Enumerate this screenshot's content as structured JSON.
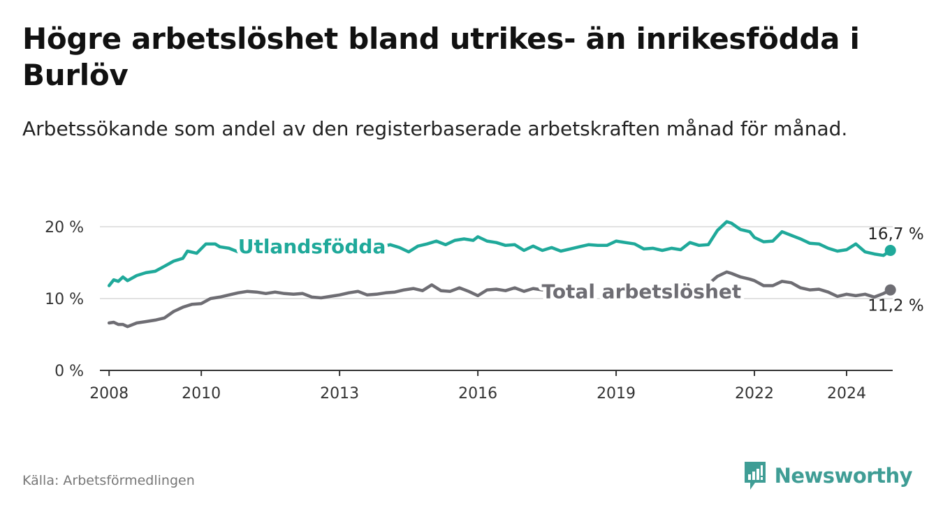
{
  "header": {
    "title": "Högre arbetslöshet bland utrikes- än inrikesfödda i Burlöv",
    "subtitle": "Arbetssökande som andel av den registerbaserade arbetskraften månad för månad."
  },
  "footer": {
    "source": "Källa: Arbetsförmedlingen",
    "brand": "Newsworthy",
    "brand_icon": "bar-chart-logo-icon",
    "brand_color": "#3f9d95"
  },
  "chart_data": {
    "type": "line",
    "title": "Högre arbetslöshet bland utrikes- än inrikesfödda i Burlöv",
    "xlabel": "",
    "ylabel": "",
    "xlim": [
      2007.8,
      2025.0
    ],
    "ylim": [
      0,
      20
    ],
    "x_ticks": [
      {
        "value": 2008,
        "label": "2008"
      },
      {
        "value": 2010,
        "label": "2010"
      },
      {
        "value": 2013,
        "label": "2013"
      },
      {
        "value": 2016,
        "label": "2016"
      },
      {
        "value": 2019,
        "label": "2019"
      },
      {
        "value": 2022,
        "label": "2022"
      },
      {
        "value": 2024,
        "label": "2024"
      }
    ],
    "y_ticks": [
      {
        "value": 0,
        "label": "0 %"
      },
      {
        "value": 10,
        "label": "10 %"
      },
      {
        "value": 20,
        "label": "20 %"
      }
    ],
    "grid": true,
    "series": [
      {
        "name": "Utlandsfödda",
        "color": "#1fa99a",
        "end_label": "16,7 %",
        "end_value": 16.7,
        "points": [
          [
            2008.0,
            11.8
          ],
          [
            2008.1,
            12.6
          ],
          [
            2008.2,
            12.4
          ],
          [
            2008.3,
            13.0
          ],
          [
            2008.4,
            12.5
          ],
          [
            2008.6,
            13.2
          ],
          [
            2008.8,
            13.6
          ],
          [
            2009.0,
            13.8
          ],
          [
            2009.2,
            14.5
          ],
          [
            2009.4,
            15.2
          ],
          [
            2009.6,
            15.6
          ],
          [
            2009.7,
            16.6
          ],
          [
            2009.9,
            16.3
          ],
          [
            2010.1,
            17.6
          ],
          [
            2010.3,
            17.6
          ],
          [
            2010.4,
            17.2
          ],
          [
            2010.6,
            17.0
          ],
          [
            2010.8,
            16.5
          ],
          [
            2011.0,
            17.5
          ],
          [
            2011.2,
            17.1
          ],
          [
            2011.4,
            17.6
          ],
          [
            2011.6,
            17.5
          ],
          [
            2011.8,
            16.5
          ],
          [
            2011.9,
            16.4
          ],
          [
            2012.1,
            17.5
          ],
          [
            2012.3,
            17.2
          ],
          [
            2012.5,
            17.4
          ],
          [
            2012.7,
            17.6
          ],
          [
            2012.9,
            17.4
          ],
          [
            2013.1,
            17.7
          ],
          [
            2013.3,
            17.3
          ],
          [
            2013.5,
            17.6
          ],
          [
            2013.7,
            17.5
          ],
          [
            2013.9,
            17.2
          ],
          [
            2014.1,
            17.5
          ],
          [
            2014.3,
            17.1
          ],
          [
            2014.5,
            16.5
          ],
          [
            2014.7,
            17.3
          ],
          [
            2014.9,
            17.6
          ],
          [
            2015.1,
            18.0
          ],
          [
            2015.3,
            17.5
          ],
          [
            2015.5,
            18.1
          ],
          [
            2015.7,
            18.3
          ],
          [
            2015.9,
            18.1
          ],
          [
            2016.0,
            18.6
          ],
          [
            2016.2,
            18.0
          ],
          [
            2016.4,
            17.8
          ],
          [
            2016.6,
            17.4
          ],
          [
            2016.8,
            17.5
          ],
          [
            2017.0,
            16.7
          ],
          [
            2017.2,
            17.3
          ],
          [
            2017.4,
            16.7
          ],
          [
            2017.6,
            17.1
          ],
          [
            2017.8,
            16.6
          ],
          [
            2018.0,
            16.9
          ],
          [
            2018.2,
            17.2
          ],
          [
            2018.4,
            17.5
          ],
          [
            2018.6,
            17.4
          ],
          [
            2018.8,
            17.4
          ],
          [
            2019.0,
            18.0
          ],
          [
            2019.2,
            17.8
          ],
          [
            2019.4,
            17.6
          ],
          [
            2019.6,
            16.9
          ],
          [
            2019.8,
            17.0
          ],
          [
            2020.0,
            16.7
          ],
          [
            2020.2,
            17.0
          ],
          [
            2020.4,
            16.8
          ],
          [
            2020.6,
            17.8
          ],
          [
            2020.8,
            17.4
          ],
          [
            2021.0,
            17.5
          ],
          [
            2021.2,
            19.5
          ],
          [
            2021.4,
            20.7
          ],
          [
            2021.5,
            20.5
          ],
          [
            2021.7,
            19.6
          ],
          [
            2021.9,
            19.3
          ],
          [
            2022.0,
            18.5
          ],
          [
            2022.2,
            17.9
          ],
          [
            2022.4,
            18.0
          ],
          [
            2022.6,
            19.3
          ],
          [
            2022.8,
            18.8
          ],
          [
            2023.0,
            18.3
          ],
          [
            2023.2,
            17.7
          ],
          [
            2023.4,
            17.6
          ],
          [
            2023.6,
            17.0
          ],
          [
            2023.8,
            16.6
          ],
          [
            2024.0,
            16.8
          ],
          [
            2024.2,
            17.6
          ],
          [
            2024.4,
            16.5
          ],
          [
            2024.6,
            16.2
          ],
          [
            2024.8,
            16.0
          ],
          [
            2024.95,
            16.7
          ]
        ]
      },
      {
        "name": "Total arbetslöshet",
        "color": "#6e6d73",
        "end_label": "11,2 %",
        "end_value": 11.2,
        "points": [
          [
            2008.0,
            6.6
          ],
          [
            2008.1,
            6.7
          ],
          [
            2008.2,
            6.4
          ],
          [
            2008.3,
            6.4
          ],
          [
            2008.4,
            6.1
          ],
          [
            2008.6,
            6.6
          ],
          [
            2008.8,
            6.8
          ],
          [
            2009.0,
            7.0
          ],
          [
            2009.2,
            7.3
          ],
          [
            2009.4,
            8.2
          ],
          [
            2009.6,
            8.8
          ],
          [
            2009.8,
            9.2
          ],
          [
            2010.0,
            9.3
          ],
          [
            2010.2,
            10.0
          ],
          [
            2010.4,
            10.2
          ],
          [
            2010.6,
            10.5
          ],
          [
            2010.8,
            10.8
          ],
          [
            2011.0,
            11.0
          ],
          [
            2011.2,
            10.9
          ],
          [
            2011.4,
            10.7
          ],
          [
            2011.6,
            10.9
          ],
          [
            2011.8,
            10.7
          ],
          [
            2012.0,
            10.6
          ],
          [
            2012.2,
            10.7
          ],
          [
            2012.4,
            10.2
          ],
          [
            2012.6,
            10.1
          ],
          [
            2012.8,
            10.3
          ],
          [
            2013.0,
            10.5
          ],
          [
            2013.2,
            10.8
          ],
          [
            2013.4,
            11.0
          ],
          [
            2013.6,
            10.5
          ],
          [
            2013.8,
            10.6
          ],
          [
            2014.0,
            10.8
          ],
          [
            2014.2,
            10.9
          ],
          [
            2014.4,
            11.2
          ],
          [
            2014.6,
            11.4
          ],
          [
            2014.8,
            11.1
          ],
          [
            2015.0,
            11.9
          ],
          [
            2015.2,
            11.1
          ],
          [
            2015.4,
            11.0
          ],
          [
            2015.6,
            11.5
          ],
          [
            2015.8,
            11.0
          ],
          [
            2016.0,
            10.4
          ],
          [
            2016.2,
            11.2
          ],
          [
            2016.4,
            11.3
          ],
          [
            2016.6,
            11.1
          ],
          [
            2016.8,
            11.5
          ],
          [
            2017.0,
            11.0
          ],
          [
            2017.2,
            11.4
          ],
          [
            2017.4,
            11.2
          ],
          [
            2017.6,
            11.7
          ],
          [
            2017.8,
            11.2
          ],
          [
            2018.0,
            10.8
          ],
          [
            2018.2,
            10.5
          ],
          [
            2018.4,
            10.9
          ],
          [
            2021.0,
            12.0
          ],
          [
            2021.2,
            13.1
          ],
          [
            2021.4,
            13.7
          ],
          [
            2021.5,
            13.5
          ],
          [
            2021.7,
            13.0
          ],
          [
            2021.9,
            12.7
          ],
          [
            2022.0,
            12.5
          ],
          [
            2022.2,
            11.8
          ],
          [
            2022.4,
            11.8
          ],
          [
            2022.6,
            12.4
          ],
          [
            2022.8,
            12.2
          ],
          [
            2023.0,
            11.5
          ],
          [
            2023.2,
            11.2
          ],
          [
            2023.4,
            11.3
          ],
          [
            2023.6,
            10.9
          ],
          [
            2023.8,
            10.3
          ],
          [
            2024.0,
            10.6
          ],
          [
            2024.2,
            10.4
          ],
          [
            2024.4,
            10.6
          ],
          [
            2024.6,
            10.2
          ],
          [
            2024.8,
            10.7
          ],
          [
            2024.95,
            11.2
          ]
        ]
      }
    ],
    "annotations": [
      {
        "text": "Utlandsfödda",
        "series": "Utlandsfödda",
        "x": 2012.4,
        "y": 17.3
      },
      {
        "text": "Total arbetslöshet",
        "series": "Total arbetslöshet",
        "x": 2019.55,
        "y": 11.0
      }
    ]
  }
}
